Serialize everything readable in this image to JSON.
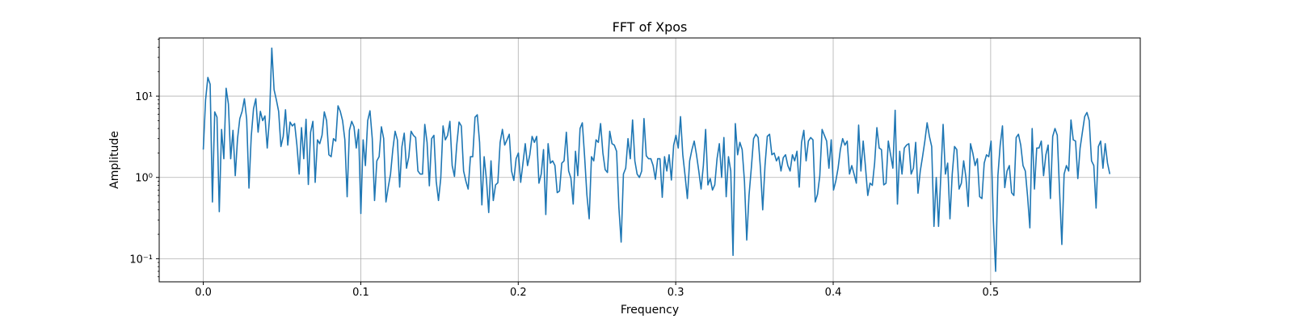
{
  "chart_data": {
    "type": "line",
    "title": "FFT of Xpos",
    "xlabel": "Frequency",
    "ylabel": "Amplitude",
    "xlim": [
      -0.028,
      0.595
    ],
    "ylim": [
      0.052,
      52
    ],
    "yscale": "log",
    "grid": true,
    "x_ticks": [
      0.0,
      0.1,
      0.2,
      0.3,
      0.4,
      0.5
    ],
    "x_tick_labels": [
      "0.0",
      "0.1",
      "0.2",
      "0.3",
      "0.4",
      "0.5"
    ],
    "y_ticks": [
      0.1,
      1,
      10
    ],
    "y_tick_labels": [
      "10⁻¹",
      "10⁰",
      "10¹"
    ],
    "line_color": "#1f77b4",
    "x_start": 0.0,
    "x_step": 0.00145,
    "series": [
      {
        "values": [
          2.2,
          9,
          17,
          14,
          0.5,
          6.4,
          5.5,
          0.38,
          3.9,
          1.7,
          12.5,
          8,
          1.7,
          3.8,
          1.05,
          3,
          5.3,
          6.5,
          9.3,
          5.2,
          0.74,
          3.2,
          7,
          9.3,
          3.6,
          6.5,
          5,
          5.7,
          2.3,
          5.4,
          39,
          12,
          9,
          6.5,
          2.4,
          3.2,
          6.8,
          2.5,
          4.8,
          4.3,
          4.6,
          2.5,
          1.1,
          4.1,
          1.7,
          5.2,
          0.82,
          3.6,
          4.9,
          0.87,
          2.9,
          2.6,
          3.3,
          6.4,
          5,
          1.9,
          1.8,
          3,
          2.8,
          7.6,
          6.5,
          5,
          2.9,
          0.58,
          3.8,
          4.9,
          4.2,
          2.3,
          3.9,
          0.36,
          2.9,
          1.4,
          5,
          6.6,
          3,
          0.52,
          1.6,
          1.8,
          4.2,
          3,
          0.5,
          0.76,
          1.1,
          2.2,
          3.7,
          2.9,
          0.76,
          2.4,
          3.5,
          1.3,
          1.8,
          3.7,
          3.3,
          3.1,
          1.2,
          1.1,
          1.1,
          4.5,
          2.7,
          0.79,
          3,
          3.3,
          0.9,
          0.52,
          0.98,
          4.3,
          2.9,
          3.3,
          4.9,
          1.4,
          1.03,
          2.5,
          4.8,
          4.3,
          1.2,
          0.9,
          0.72,
          1.8,
          1.8,
          5.5,
          5.9,
          2.7,
          0.46,
          1.8,
          0.94,
          0.37,
          1.6,
          0.52,
          0.81,
          0.86,
          2.7,
          3.9,
          2.5,
          2.9,
          3.4,
          1.2,
          0.92,
          1.7,
          2,
          0.87,
          1.5,
          2.6,
          1.4,
          1.9,
          3.2,
          2.7,
          3.2,
          0.85,
          1.1,
          2.2,
          0.35,
          2.6,
          1.5,
          1.6,
          1.4,
          0.65,
          0.68,
          1.5,
          1.6,
          3.6,
          1.2,
          0.98,
          0.47,
          2.1,
          1.05,
          4,
          4.7,
          1.8,
          0.61,
          0.31,
          1.8,
          1.6,
          2.9,
          2.7,
          4.6,
          2,
          1.25,
          1.15,
          3.7,
          2.6,
          2.5,
          2.1,
          0.43,
          0.16,
          1.1,
          1.3,
          3,
          1.7,
          5.1,
          1.6,
          1.1,
          1,
          1.2,
          5.3,
          1.85,
          1.7,
          1.7,
          1.4,
          0.95,
          1.7,
          1.7,
          0.57,
          1.8,
          1.2,
          1.9,
          0.93,
          2.5,
          3.3,
          2.3,
          5.6,
          1.9,
          1.05,
          0.55,
          1.6,
          2.2,
          2.8,
          1.9,
          1.2,
          0.72,
          1.4,
          3.9,
          0.81,
          0.97,
          0.7,
          0.81,
          1.7,
          2.6,
          1,
          3.1,
          0.58,
          1.8,
          1.2,
          0.11,
          4.6,
          1.9,
          2.7,
          2.2,
          0.9,
          0.17,
          0.6,
          1.3,
          3,
          3.4,
          3.1,
          1.3,
          0.4,
          1.4,
          3.2,
          3.4,
          1.9,
          2,
          1.6,
          1.8,
          1.2,
          1.75,
          1.9,
          1.4,
          1.2,
          1.9,
          1.6,
          2.1,
          0.76,
          2.7,
          3.8,
          1.6,
          2.8,
          3.1,
          2.9,
          0.5,
          0.62,
          1.05,
          3.9,
          3.3,
          2.8,
          1.3,
          2.9,
          0.7,
          0.9,
          1.3,
          2.2,
          3,
          2.5,
          2.8,
          1.1,
          1.4,
          1.1,
          0.85,
          4.4,
          1.2,
          2.8,
          1.35,
          0.6,
          0.85,
          0.8,
          1.5,
          4.1,
          2.3,
          2.2,
          0.81,
          0.85,
          2.8,
          1.9,
          1.3,
          6.7,
          0.47,
          2.1,
          1.1,
          2.3,
          2.5,
          2.6,
          1.1,
          1.3,
          2.7,
          0.64,
          1.2,
          1.8,
          2.8,
          4.7,
          3.2,
          2.4,
          0.25,
          1,
          0.25,
          1.05,
          4.5,
          1.1,
          1.5,
          0.31,
          1.1,
          2.4,
          2.2,
          0.72,
          0.85,
          1.6,
          1,
          0.44,
          2.6,
          2,
          1.4,
          1.7,
          0.58,
          0.55,
          1.5,
          1.9,
          1.8,
          2.8,
          0.3,
          0.07,
          1.05,
          2.5,
          4.3,
          0.75,
          1.2,
          1.4,
          0.65,
          0.6,
          3.1,
          3.4,
          2.5,
          1.4,
          1.2,
          0.58,
          0.24,
          4,
          0.72,
          2.3,
          2.3,
          2.8,
          1.05,
          1.9,
          2.5,
          0.55,
          3.2,
          4,
          3.3,
          0.68,
          0.15,
          1.1,
          1.4,
          1.2,
          5.1,
          2.9,
          2.8,
          0.97,
          2.3,
          3.6,
          5.6,
          6.3,
          5,
          1.6,
          1.4,
          0.42,
          2.4,
          2.8,
          1.3,
          2.6,
          1.5,
          1.1
        ]
      }
    ]
  }
}
